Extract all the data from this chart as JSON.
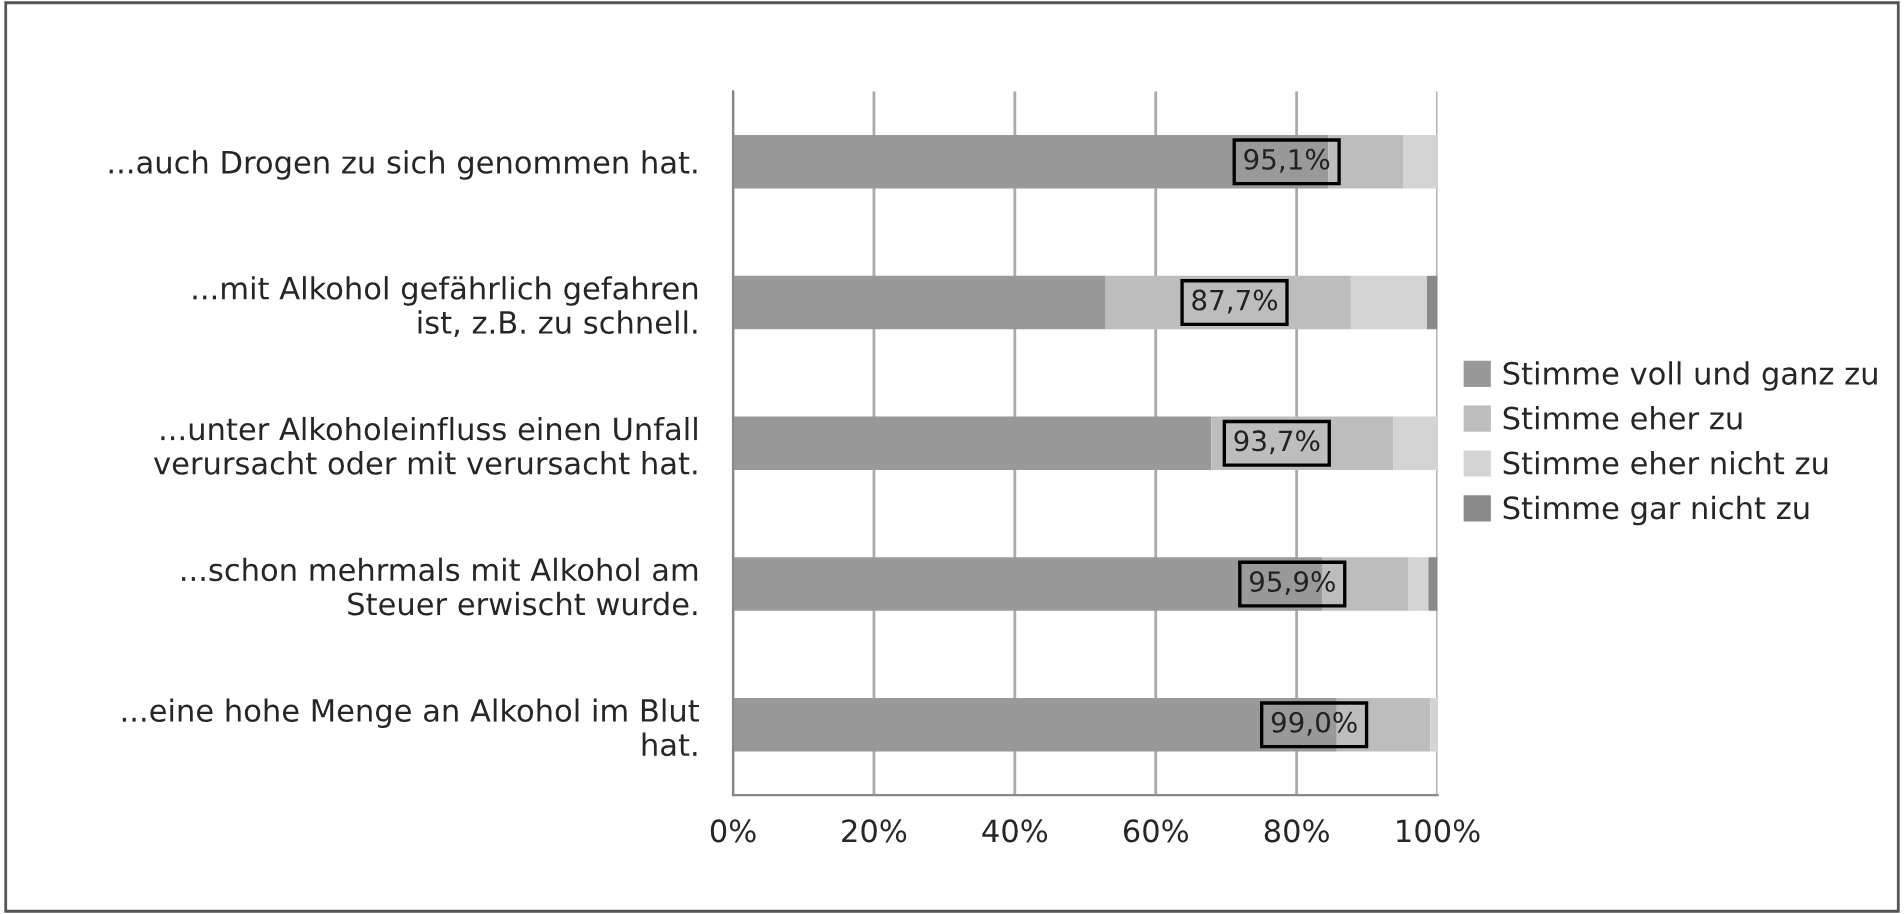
{
  "chart_data": {
    "type": "bar",
    "orientation": "horizontal",
    "stacked": true,
    "categories": [
      "...auch Drogen zu sich genommen hat.",
      "...mit Alkohol gefährlich gefahren\nist, z.B. zu schnell.",
      "...unter Alkoholeinfluss einen Unfall\nverursacht oder mit verursacht hat.",
      "...schon mehrmals mit Alkohol am\nSteuer erwischt wurde.",
      "...eine hohe Menge an Alkohol im Blut\nhat."
    ],
    "series": [
      {
        "name": "Stimme voll und ganz zu",
        "color": "#999999",
        "values": [
          84.5,
          52.8,
          67.9,
          83.6,
          85.7
        ]
      },
      {
        "name": "Stimme eher zu",
        "color": "#bdbdbd",
        "values": [
          10.6,
          34.9,
          25.8,
          12.3,
          13.3
        ]
      },
      {
        "name": "Stimme eher nicht zu",
        "color": "#d4d4d4",
        "values": [
          4.9,
          10.8,
          6.3,
          2.8,
          1.0
        ]
      },
      {
        "name": "Stimme gar nicht zu",
        "color": "#8a8a8a",
        "values": [
          null,
          1.5,
          null,
          1.3,
          null
        ]
      }
    ],
    "annotations": [
      {
        "text": "95,1%",
        "x": 95.1,
        "y": "...auch Drogen zu sich genommen hat."
      },
      {
        "text": "87,7%",
        "x": 87.7,
        "y": "...mit Alkohol gefährlich gefahren\nist, z.B. zu schnell."
      },
      {
        "text": "93,7%",
        "x": 93.7,
        "y": "...unter Alkoholeinfluss einen Unfall\nverursacht oder mit verursacht hat."
      },
      {
        "text": "95,9%",
        "x": 95.9,
        "y": "...schon mehrmals mit Alkohol am\nSteuer erwischt wurde."
      },
      {
        "text": "99,0%",
        "x": 99.0,
        "y": "...eine hohe Menge an Alkohol im Blut\nhat."
      }
    ],
    "xlim": [
      0,
      100
    ],
    "xticks": [
      {
        "value": 0,
        "label": "0%"
      },
      {
        "value": 20,
        "label": "20%"
      },
      {
        "value": 40,
        "label": "40%"
      },
      {
        "value": 60,
        "label": "60%"
      },
      {
        "value": 80,
        "label": "80%"
      },
      {
        "value": 100,
        "label": "100%"
      }
    ],
    "grid": "x",
    "legend": "right"
  }
}
